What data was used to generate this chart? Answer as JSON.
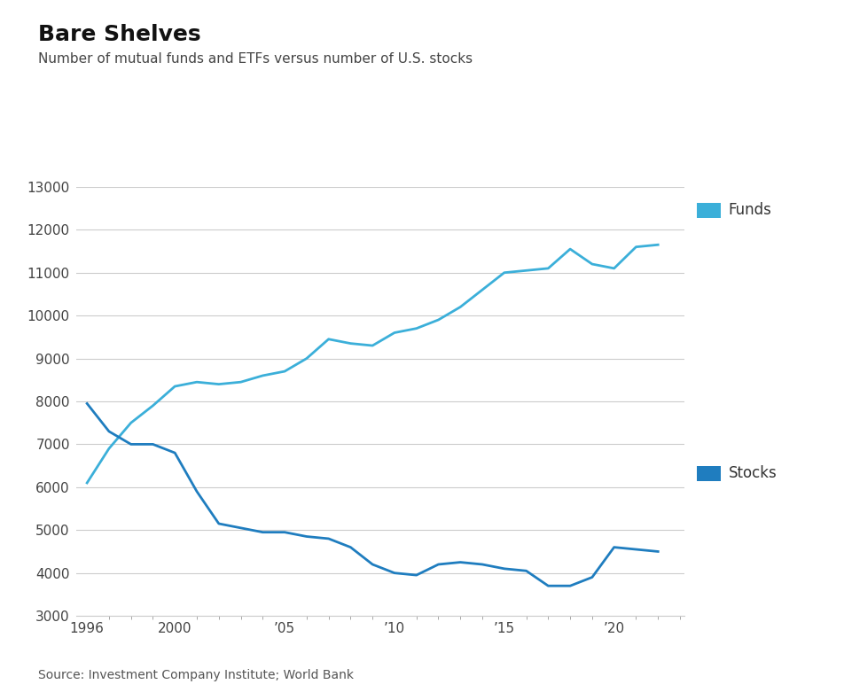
{
  "title": "Bare Shelves",
  "subtitle": "Number of mutual funds and ETFs versus number of U.S. stocks",
  "source": "Source: Investment Company Institute; World Bank",
  "funds_years": [
    1996,
    1997,
    1998,
    1999,
    2000,
    2001,
    2002,
    2003,
    2004,
    2005,
    2006,
    2007,
    2008,
    2009,
    2010,
    2011,
    2012,
    2013,
    2014,
    2015,
    2016,
    2017,
    2018,
    2019,
    2020,
    2021,
    2022
  ],
  "funds_values": [
    6100,
    6900,
    7500,
    7900,
    8350,
    8450,
    8400,
    8450,
    8600,
    8700,
    9000,
    9450,
    9350,
    9300,
    9600,
    9700,
    9900,
    10200,
    10600,
    11000,
    11050,
    11100,
    11550,
    11200,
    11100,
    11600,
    11650
  ],
  "stocks_years": [
    1996,
    1997,
    1998,
    1999,
    2000,
    2001,
    2002,
    2003,
    2004,
    2005,
    2006,
    2007,
    2008,
    2009,
    2010,
    2011,
    2012,
    2013,
    2014,
    2015,
    2016,
    2017,
    2018,
    2019,
    2020,
    2021,
    2022
  ],
  "stocks_values": [
    7950,
    7300,
    7000,
    7000,
    6800,
    5900,
    5150,
    5050,
    4950,
    4950,
    4850,
    4800,
    4600,
    4200,
    4000,
    3950,
    4200,
    4250,
    4200,
    4100,
    4050,
    3700,
    3700,
    3900,
    4600,
    4550,
    4500
  ],
  "funds_color": "#3BAFD9",
  "stocks_color": "#1F7DBF",
  "ylim": [
    3000,
    13000
  ],
  "yticks": [
    3000,
    4000,
    5000,
    6000,
    7000,
    8000,
    9000,
    10000,
    11000,
    12000,
    13000
  ],
  "xlim": [
    1995.5,
    2023.2
  ],
  "xtick_years": [
    1996,
    2000,
    2005,
    2010,
    2015,
    2020
  ],
  "xtick_labels": [
    "1996",
    "2000",
    "’05",
    "’10",
    "’15",
    "’20"
  ],
  "background_color": "#FFFFFF",
  "grid_color": "#CCCCCC",
  "title_fontsize": 18,
  "subtitle_fontsize": 11,
  "legend_fontsize": 12,
  "tick_fontsize": 11,
  "source_fontsize": 10
}
